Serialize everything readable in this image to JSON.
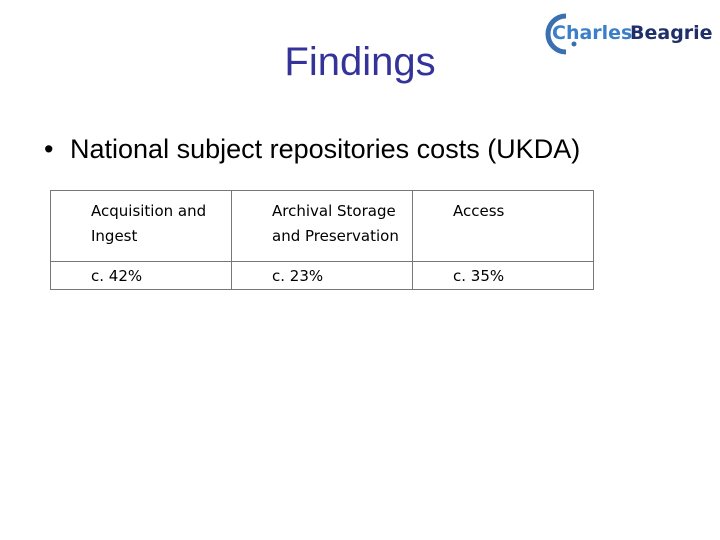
{
  "logo": {
    "first": "Charles",
    "second": "Beagrie"
  },
  "title": "Findings",
  "bullet": "National subject repositories costs (UKDA)",
  "table": {
    "rows": [
      [
        "Acquisition and Ingest",
        "Archival Storage and Preservation",
        "Access"
      ],
      [
        "c. 42%",
        "c. 23%",
        "c. 35%"
      ]
    ]
  }
}
